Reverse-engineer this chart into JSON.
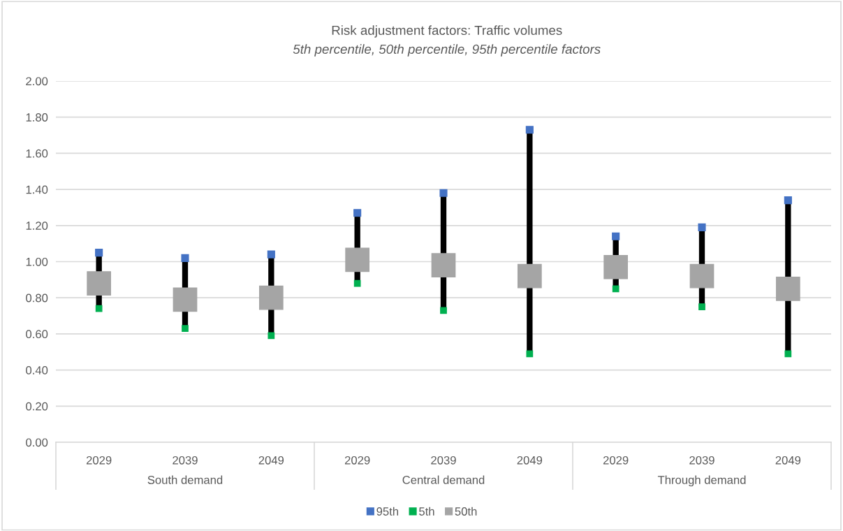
{
  "chart_data": {
    "type": "scatter",
    "title": "Risk adjustment factors: Traffic volumes",
    "subtitle": "5th percentile, 50th percentile, 95th percentile factors",
    "categories": [
      "2029",
      "2039",
      "2049",
      "2029",
      "2039",
      "2049",
      "2029",
      "2039",
      "2049"
    ],
    "annotations": [
      "South demand",
      "Central demand",
      "Through demand"
    ],
    "series": [
      {
        "name": "95th",
        "color": "#4472c4",
        "values": [
          1.05,
          1.02,
          1.04,
          1.27,
          1.38,
          1.73,
          1.14,
          1.19,
          1.34
        ]
      },
      {
        "name": "5th",
        "color": "#00b050",
        "values": [
          0.74,
          0.63,
          0.59,
          0.88,
          0.73,
          0.49,
          0.85,
          0.75,
          0.49
        ]
      },
      {
        "name": "50th",
        "color": "#a5a5a5",
        "values": [
          0.88,
          0.79,
          0.8,
          1.01,
          0.98,
          0.92,
          0.97,
          0.92,
          0.85
        ]
      }
    ],
    "ylim": [
      0,
      2
    ],
    "yticks": [
      {
        "value": 0,
        "label": "0.00"
      },
      {
        "value": 0.2,
        "label": "0.20"
      },
      {
        "value": 0.4,
        "label": "0.40"
      },
      {
        "value": 0.6,
        "label": "0.60"
      },
      {
        "value": 0.8,
        "label": "0.80"
      },
      {
        "value": 1.0,
        "label": "1.00"
      },
      {
        "value": 1.2,
        "label": "1.20"
      },
      {
        "value": 1.4,
        "label": "1.40"
      },
      {
        "value": 1.6,
        "label": "1.60"
      },
      {
        "value": 1.8,
        "label": "1.80"
      },
      {
        "value": 2.0,
        "label": "2.00"
      }
    ],
    "grid": "y",
    "legend": "bottom",
    "marker": "square"
  }
}
